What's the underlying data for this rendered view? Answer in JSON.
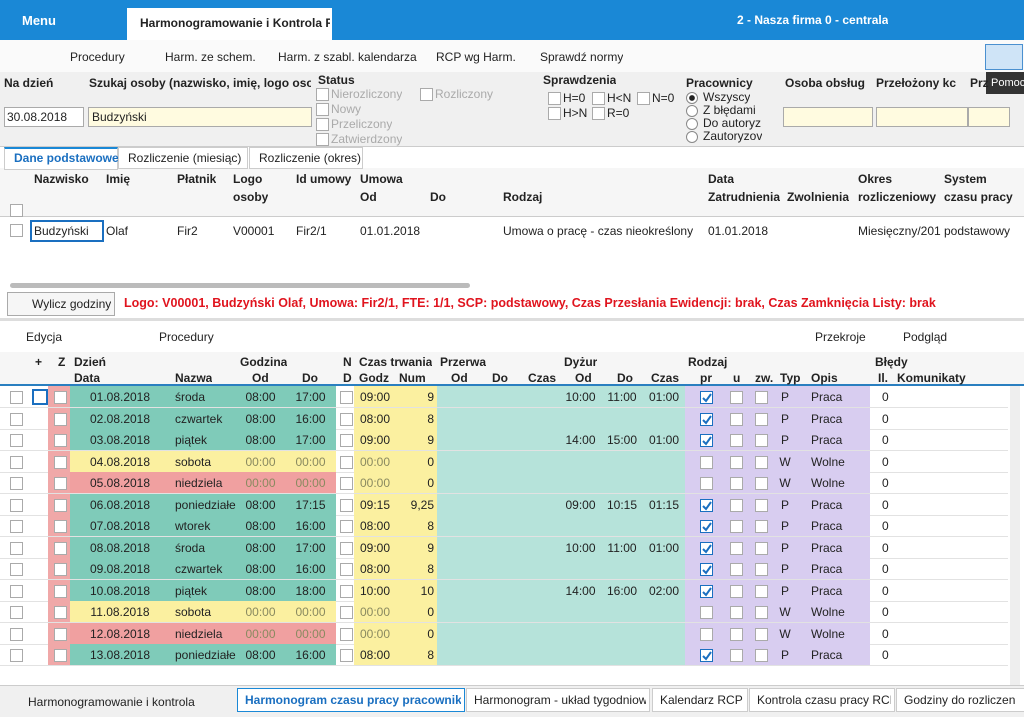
{
  "titlebar": {
    "menu": "Menu",
    "tab": "Harmonogramowanie i Kontrola RCP",
    "company": "2 - Nasza firma 0 - centrala"
  },
  "toolbar": [
    "Procedury",
    "Harm. ze schem.",
    "Harm. z szabl. kalendarza",
    "RCP wg Harm.",
    "Sprawdź normy"
  ],
  "tooltip": "Pomoc",
  "filters": {
    "date_label": "Na dzień",
    "date": "30.08.2018",
    "search_label": "Szukaj osoby (nazwisko, imię, logo osoby, P",
    "search": "Budzyński",
    "status_label": "Status",
    "status": [
      "Nierozliczony",
      "Nowy",
      "Przeliczony",
      "Zatwierdzony",
      "Rozliczony"
    ],
    "checks_label": "Sprawdzenia",
    "checks": [
      "H=0",
      "H<N",
      "N=0",
      "H>N",
      "R=0"
    ],
    "workers_label": "Pracownicy",
    "workers": [
      "Wszyscy",
      "Z błędami",
      "Do autoryz",
      "Zautoryzov"
    ],
    "service_label": "Osoba obsług",
    "supervisor_label": "Przełożony kc",
    "extra_label": "Prz"
  },
  "tabs": [
    "Dane podstawowe",
    "Rozliczenie (miesiąc)",
    "Rozliczenie (okres)"
  ],
  "upper_table": {
    "headers": [
      "Nazwisko",
      "Imię",
      "Płatnik",
      "Logo",
      "osoby",
      "Id umowy",
      "Umowa",
      "Od",
      "Do",
      "Rodzaj",
      "Data",
      "Zatrudnienia",
      "Zwolnienia",
      "Okres",
      "rozliczeniowy",
      "System",
      "czasu pracy"
    ],
    "row": [
      "Budzyński",
      "Olaf",
      "Fir2",
      "V00001",
      "Fir2/1",
      "01.01.2018",
      "Umowa o pracę - czas nieokreślony",
      "01.01.2018",
      "Miesięczny/201",
      "podstawowy"
    ]
  },
  "compute_button": "Wylicz godziny",
  "info": "Logo: V00001, Budzyński Olaf, Umowa: Fir2/1, FTE: 1/1, SCP: podstawowy, Czas Przesłania Ewidencji: brak, Czas Zamknięcia Listy: brak",
  "lower_toolbar": [
    "Edycja",
    "Procedury",
    "Przekroje",
    "Podgląd"
  ],
  "lower_table": {
    "headers_top": [
      "+",
      "Z",
      "Dzień",
      "Godzina",
      "N",
      "Czas trwania",
      "Przerwa",
      "Dyżur",
      "Rodzaj",
      "Błędy"
    ],
    "headers_sub": [
      "Data",
      "Nazwa",
      "Od",
      "Do",
      "D",
      "Godz",
      "Num",
      "Od",
      "Do",
      "Czas",
      "Od",
      "Do",
      "Czas",
      "pr",
      "u",
      "zw.",
      "Typ",
      "Opis",
      "Il.",
      "Komunikaty"
    ],
    "rows": [
      [
        "01.08.2018",
        "środa",
        "08:00",
        "17:00",
        "09:00",
        "9",
        "10:00",
        "11:00",
        "01:00",
        "P",
        "Praca",
        "0"
      ],
      [
        "02.08.2018",
        "czwartek",
        "08:00",
        "16:00",
        "08:00",
        "8",
        null,
        null,
        null,
        "P",
        "Praca",
        "0"
      ],
      [
        "03.08.2018",
        "piątek",
        "08:00",
        "17:00",
        "09:00",
        "9",
        "14:00",
        "15:00",
        "01:00",
        "P",
        "Praca",
        "0"
      ],
      [
        "04.08.2018",
        "sobota",
        "00:00",
        "00:00",
        "00:00",
        "0",
        null,
        null,
        null,
        "W",
        "Wolne",
        "0"
      ],
      [
        "05.08.2018",
        "niedziela",
        "00:00",
        "00:00",
        "00:00",
        "0",
        null,
        null,
        null,
        "W",
        "Wolne",
        "0"
      ],
      [
        "06.08.2018",
        "poniedziałe",
        "08:00",
        "17:15",
        "09:15",
        "9,25",
        "09:00",
        "10:15",
        "01:15",
        "P",
        "Praca",
        "0"
      ],
      [
        "07.08.2018",
        "wtorek",
        "08:00",
        "16:00",
        "08:00",
        "8",
        null,
        null,
        null,
        "P",
        "Praca",
        "0"
      ],
      [
        "08.08.2018",
        "środa",
        "08:00",
        "17:00",
        "09:00",
        "9",
        "10:00",
        "11:00",
        "01:00",
        "P",
        "Praca",
        "0"
      ],
      [
        "09.08.2018",
        "czwartek",
        "08:00",
        "16:00",
        "08:00",
        "8",
        null,
        null,
        null,
        "P",
        "Praca",
        "0"
      ],
      [
        "10.08.2018",
        "piątek",
        "08:00",
        "18:00",
        "10:00",
        "10",
        "14:00",
        "16:00",
        "02:00",
        "P",
        "Praca",
        "0"
      ],
      [
        "11.08.2018",
        "sobota",
        "00:00",
        "00:00",
        "00:00",
        "0",
        null,
        null,
        null,
        "W",
        "Wolne",
        "0"
      ],
      [
        "12.08.2018",
        "niedziela",
        "00:00",
        "00:00",
        "00:00",
        "0",
        null,
        null,
        null,
        "W",
        "Wolne",
        "0"
      ],
      [
        "13.08.2018",
        "poniedziałe",
        "08:00",
        "16:00",
        "08:00",
        "8",
        null,
        null,
        null,
        "P",
        "Praca",
        "0"
      ]
    ]
  },
  "footer": {
    "module": "Harmonogramowanie i kontrola",
    "tabs": [
      "Harmonogram czasu pracy pracowników",
      "Harmonogram - układ tygodniowy",
      "Kalendarz RCP",
      "Kontrola czasu pracy RCP",
      "Godziny do rozliczen"
    ]
  }
}
